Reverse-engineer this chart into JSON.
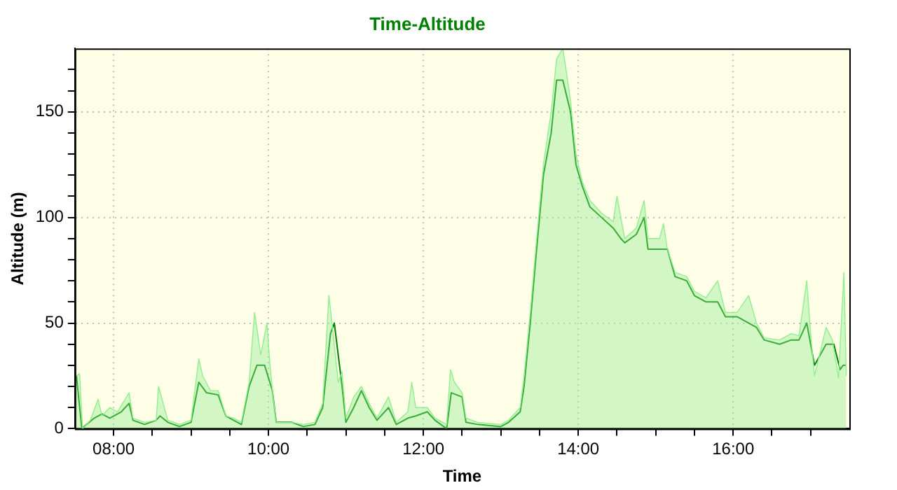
{
  "chart_data": {
    "type": "area",
    "title": "Time-Altitude",
    "xlabel": "Time",
    "ylabel": "Altitude (m)",
    "xlim": [
      7.5,
      17.5
    ],
    "ylim": [
      0,
      180
    ],
    "xticks": [
      {
        "value": 8,
        "label": "08:00"
      },
      {
        "value": 8.5,
        "label": null
      },
      {
        "value": 9,
        "label": null
      },
      {
        "value": 9.5,
        "label": null
      },
      {
        "value": 10,
        "label": "10:00"
      },
      {
        "value": 10.5,
        "label": null
      },
      {
        "value": 11,
        "label": null
      },
      {
        "value": 11.5,
        "label": null
      },
      {
        "value": 12,
        "label": "12:00"
      },
      {
        "value": 12.5,
        "label": null
      },
      {
        "value": 13,
        "label": null
      },
      {
        "value": 13.5,
        "label": null
      },
      {
        "value": 14,
        "label": "14:00"
      },
      {
        "value": 14.5,
        "label": null
      },
      {
        "value": 15,
        "label": null
      },
      {
        "value": 15.5,
        "label": null
      },
      {
        "value": 16,
        "label": "16:00"
      },
      {
        "value": 16.5,
        "label": null
      },
      {
        "value": 17,
        "label": null
      }
    ],
    "yticks": [
      0,
      {
        "value": 10,
        "label": null
      },
      {
        "value": 20,
        "label": null
      },
      {
        "value": 30,
        "label": null
      },
      {
        "value": 40,
        "label": null
      },
      50,
      {
        "value": 60,
        "label": null
      },
      {
        "value": 70,
        "label": null
      },
      {
        "value": 80,
        "label": null
      },
      {
        "value": 90,
        "label": null
      },
      100,
      {
        "value": 110,
        "label": null
      },
      {
        "value": 120,
        "label": null
      },
      {
        "value": 130,
        "label": null
      },
      {
        "value": 140,
        "label": null
      },
      150,
      {
        "value": 160,
        "label": null
      },
      {
        "value": 170,
        "label": null
      }
    ],
    "grid": true,
    "marker": "none",
    "series": [
      {
        "type": "area",
        "color": "#90ee90",
        "x": [
          7.52,
          7.56,
          7.6,
          7.7,
          7.8,
          7.85,
          7.95,
          8.05,
          8.2,
          8.25,
          8.4,
          8.55,
          8.58,
          8.7,
          8.85,
          9.0,
          9.1,
          9.15,
          9.25,
          9.35,
          9.45,
          9.55,
          9.65,
          9.75,
          9.82,
          9.9,
          9.98,
          10.02,
          10.06,
          10.1,
          10.3,
          10.45,
          10.6,
          10.7,
          10.78,
          10.82,
          10.9,
          10.95,
          11.0,
          11.1,
          11.2,
          11.3,
          11.4,
          11.55,
          11.65,
          11.8,
          11.85,
          11.9,
          12.05,
          12.15,
          12.3,
          12.35,
          12.4,
          12.5,
          12.55,
          12.7,
          13.0,
          13.1,
          13.25,
          13.3,
          13.38,
          13.45,
          13.55,
          13.65,
          13.72,
          13.8,
          13.85,
          13.9,
          13.97,
          14.05,
          14.15,
          14.3,
          14.45,
          14.5,
          14.6,
          14.75,
          14.85,
          14.9,
          15.05,
          15.1,
          15.15,
          15.25,
          15.4,
          15.5,
          15.65,
          15.8,
          15.9,
          16.05,
          16.2,
          16.3,
          16.4,
          16.6,
          16.75,
          16.85,
          16.95,
          17.0,
          17.05,
          17.2,
          17.28,
          17.36,
          17.43,
          17.46
        ],
        "values": [
          25,
          26,
          0,
          4,
          14,
          6,
          10,
          8,
          17,
          5,
          3,
          4,
          20,
          4,
          2,
          4,
          33,
          25,
          18,
          18,
          6,
          5,
          3,
          22,
          55,
          35,
          50,
          30,
          15,
          3,
          3,
          2,
          3,
          12,
          63,
          50,
          22,
          27,
          5,
          15,
          20,
          12,
          5,
          15,
          3,
          8,
          22,
          10,
          10,
          5,
          2,
          28,
          22,
          17,
          5,
          3,
          2,
          4,
          10,
          25,
          55,
          85,
          125,
          150,
          175,
          180,
          168,
          155,
          130,
          117,
          108,
          102,
          98,
          110,
          90,
          95,
          108,
          90,
          90,
          97,
          85,
          74,
          72,
          65,
          62,
          70,
          55,
          55,
          63,
          50,
          43,
          42,
          45,
          44,
          70,
          45,
          25,
          48,
          42,
          24,
          74,
          25
        ]
      },
      {
        "type": "line",
        "color": "#008000",
        "x": [
          7.52,
          7.59,
          7.65,
          7.75,
          7.85,
          7.95,
          8.1,
          8.2,
          8.25,
          8.4,
          8.55,
          8.6,
          8.7,
          8.85,
          9.0,
          9.1,
          9.2,
          9.35,
          9.45,
          9.55,
          9.65,
          9.75,
          9.85,
          9.95,
          10.05,
          10.1,
          10.3,
          10.45,
          10.6,
          10.7,
          10.8,
          10.85,
          10.95,
          11.0,
          11.1,
          11.2,
          11.3,
          11.4,
          11.55,
          11.65,
          11.8,
          11.9,
          12.05,
          12.15,
          12.3,
          12.36,
          12.5,
          12.55,
          12.7,
          13.0,
          13.1,
          13.25,
          13.3,
          13.38,
          13.45,
          13.55,
          13.65,
          13.72,
          13.8,
          13.9,
          13.97,
          14.05,
          14.15,
          14.3,
          14.45,
          14.55,
          14.6,
          14.75,
          14.85,
          14.9,
          15.05,
          15.15,
          15.25,
          15.4,
          15.5,
          15.65,
          15.8,
          15.9,
          16.05,
          16.3,
          16.4,
          16.6,
          16.75,
          16.85,
          16.95,
          17.05,
          17.2,
          17.3,
          17.38,
          17.42,
          17.46
        ],
        "values": [
          25,
          0,
          2,
          5,
          7,
          5,
          8,
          12,
          4,
          2,
          4,
          6,
          3,
          1,
          3,
          22,
          17,
          16,
          6,
          4,
          2,
          20,
          30,
          30,
          18,
          3,
          3,
          1,
          2,
          10,
          45,
          50,
          20,
          3,
          10,
          18,
          10,
          4,
          10,
          2,
          5,
          6,
          8,
          4,
          0,
          17,
          15,
          3,
          2,
          1,
          3,
          8,
          20,
          50,
          80,
          120,
          140,
          165,
          165,
          150,
          125,
          115,
          105,
          100,
          95,
          90,
          88,
          92,
          100,
          85,
          85,
          85,
          72,
          70,
          63,
          60,
          60,
          53,
          53,
          48,
          42,
          40,
          42,
          42,
          50,
          30,
          40,
          40,
          28,
          30,
          30
        ]
      }
    ]
  }
}
